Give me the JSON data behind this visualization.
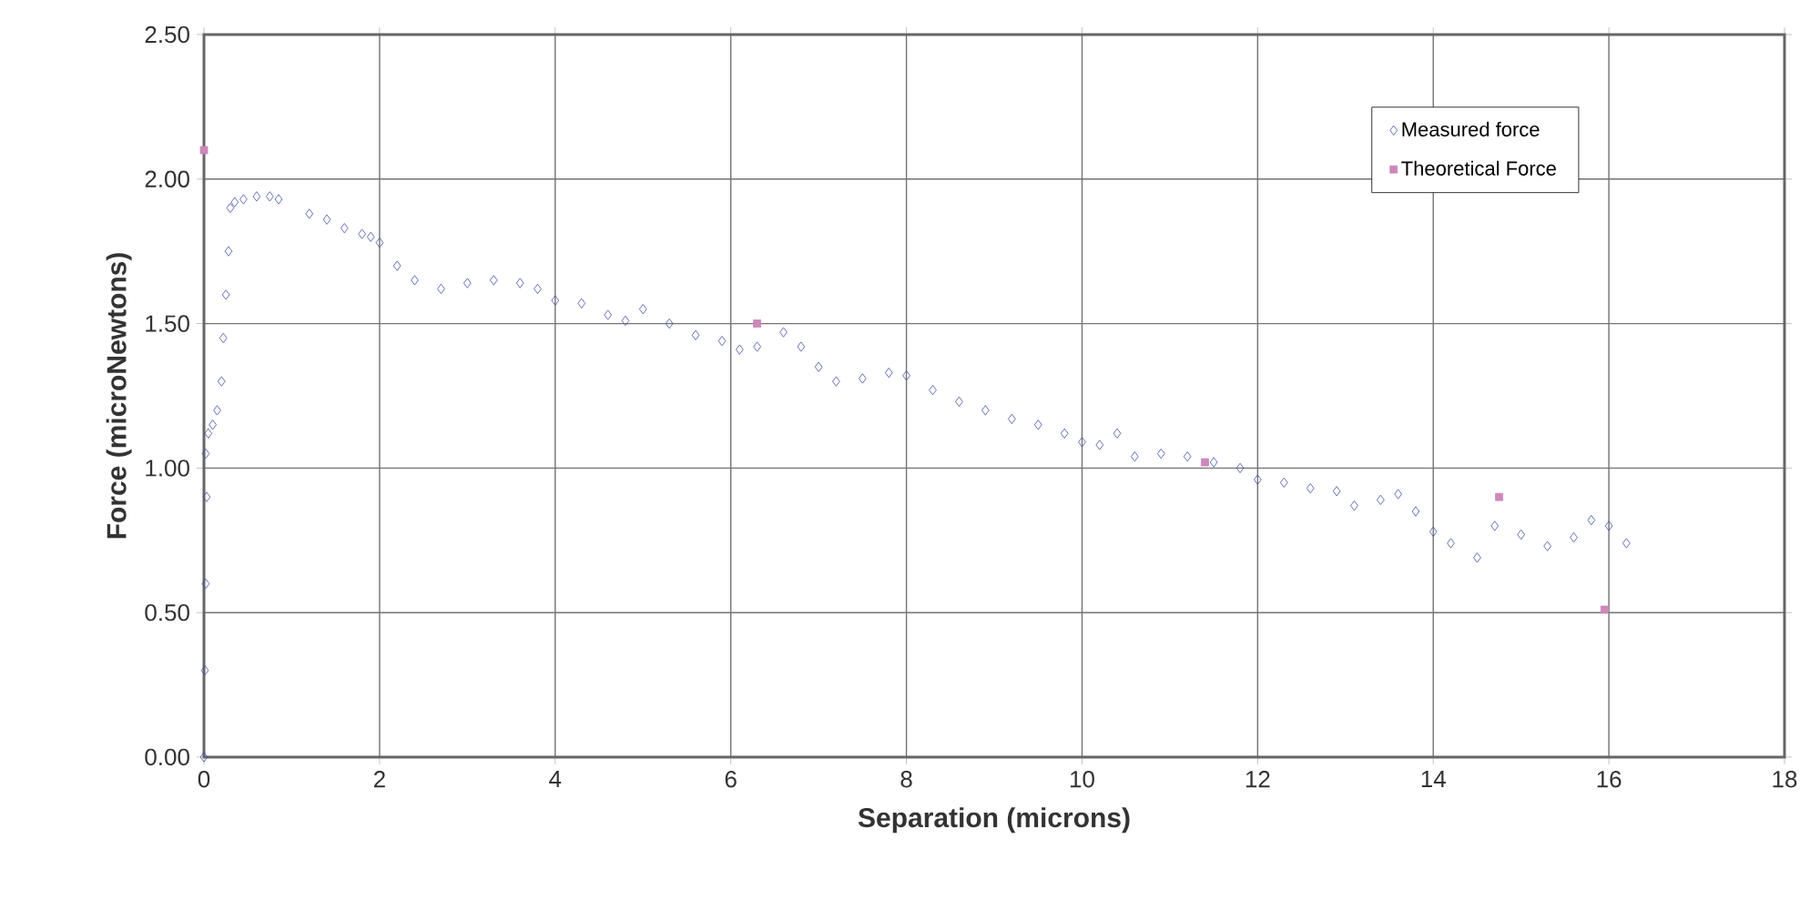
{
  "chart_data": {
    "type": "scatter",
    "xlabel": "Separation (microns)",
    "ylabel": "Force (microNewtons)",
    "xlim": [
      0,
      18
    ],
    "xticks": [
      0,
      2,
      4,
      6,
      8,
      10,
      12,
      14,
      16,
      18
    ],
    "ylim": [
      0,
      2.5
    ],
    "yticks": [
      {
        "value": 0,
        "label": "0.00"
      },
      {
        "value": 0.5,
        "label": "0.50"
      },
      {
        "value": 1,
        "label": "1.00"
      },
      {
        "value": 1.5,
        "label": "1.50"
      },
      {
        "value": 2,
        "label": "2.00"
      },
      {
        "value": 2.5,
        "label": "2.50"
      }
    ],
    "grid": true,
    "legend": "top right",
    "series": [
      {
        "name": "Measured force",
        "color": "#3f4fa0",
        "marker": "diamond",
        "x": [
          0,
          0.01,
          0.02,
          0.03,
          0.02,
          0.05,
          0.1,
          0.15,
          0.2,
          0.22,
          0.25,
          0.28,
          0.3,
          0.35,
          0.45,
          0.6,
          0.75,
          0.85,
          1.2,
          1.4,
          1.6,
          1.8,
          1.9,
          2.0,
          2.2,
          2.4,
          2.7,
          3.0,
          3.3,
          3.6,
          3.8,
          4.0,
          4.3,
          4.6,
          4.8,
          5.0,
          5.3,
          5.6,
          5.9,
          6.1,
          6.3,
          6.6,
          6.8,
          7.0,
          7.2,
          7.5,
          7.8,
          8.0,
          8.3,
          8.6,
          8.9,
          9.2,
          9.5,
          9.8,
          10.0,
          10.2,
          10.4,
          10.6,
          10.9,
          11.2,
          11.5,
          11.8,
          12.0,
          12.3,
          12.6,
          12.9,
          13.1,
          13.4,
          13.6,
          13.8,
          14.0,
          14.2,
          14.5,
          14.7,
          15.0,
          15.3,
          15.6,
          15.8,
          16.0,
          16.2
        ],
        "values": [
          0,
          0.3,
          0.6,
          0.9,
          1.05,
          1.12,
          1.15,
          1.2,
          1.3,
          1.45,
          1.6,
          1.75,
          1.9,
          1.92,
          1.93,
          1.94,
          1.94,
          1.93,
          1.88,
          1.86,
          1.83,
          1.81,
          1.8,
          1.78,
          1.7,
          1.65,
          1.62,
          1.64,
          1.65,
          1.64,
          1.62,
          1.58,
          1.57,
          1.53,
          1.51,
          1.55,
          1.5,
          1.46,
          1.44,
          1.41,
          1.42,
          1.47,
          1.42,
          1.35,
          1.3,
          1.31,
          1.33,
          1.32,
          1.27,
          1.23,
          1.2,
          1.17,
          1.15,
          1.12,
          1.09,
          1.08,
          1.12,
          1.04,
          1.05,
          1.04,
          1.02,
          1.0,
          0.96,
          0.95,
          0.93,
          0.92,
          0.87,
          0.89,
          0.91,
          0.85,
          0.78,
          0.74,
          0.69,
          0.8,
          0.77,
          0.73,
          0.76,
          0.82,
          0.8,
          0.74
        ]
      },
      {
        "name": "Theoretical Force",
        "color": "#cc88bb",
        "marker": "square",
        "x": [
          0,
          6.3,
          11.4,
          14.75,
          15.95
        ],
        "values": [
          2.1,
          1.5,
          1.02,
          0.9,
          0.51
        ]
      }
    ]
  }
}
